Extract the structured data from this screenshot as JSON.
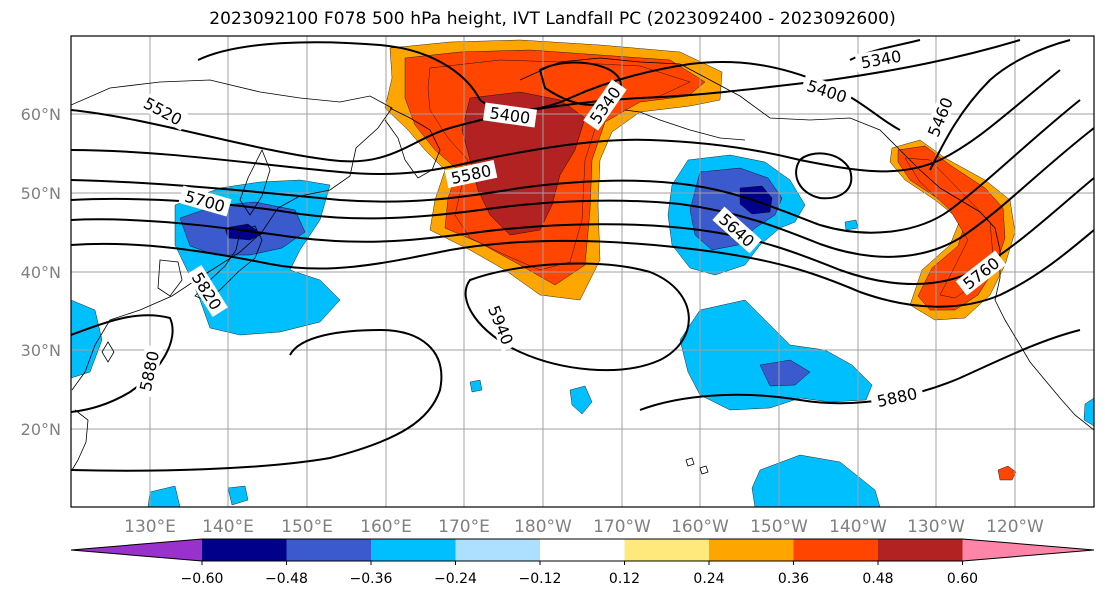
{
  "title": "2023092100 F078 500 hPa height, IVT Landfall PC (2023092400 - 2023092600)",
  "colors": {
    "neg_060_below": "#9932CC",
    "neg_060_048": "#00008B",
    "neg_048_036": "#3A5ACD",
    "neg_036_024": "#00BFFF",
    "neg_024_012": "#ADDFFF",
    "neutral": "#FFFFFF",
    "pos_012_024": "#FFE87C",
    "pos_024_036": "#FFA500",
    "pos_036_048": "#FF4500",
    "pos_048_060": "#B22222",
    "pos_060_above": "#FF85A8",
    "contour": "#000000",
    "grid": "#A0A0A0",
    "coast": "#000000"
  },
  "latitude_labels": [
    "60°N",
    "50°N",
    "40°N",
    "30°N",
    "20°N"
  ],
  "longitude_labels": [
    "130°E",
    "140°E",
    "150°E",
    "160°E",
    "170°E",
    "180°W",
    "170°W",
    "160°W",
    "150°W",
    "140°W",
    "130°W",
    "120°W"
  ],
  "colorbar": {
    "tick_labels": [
      "−0.60",
      "−0.48",
      "−0.36",
      "−0.24",
      "−0.12",
      "0.12",
      "0.24",
      "0.36",
      "0.48",
      "0.60"
    ]
  },
  "height_contour_labels": [
    "5520",
    "5400",
    "5340",
    "5580",
    "5700",
    "5820",
    "5880",
    "5940",
    "5640",
    "5400",
    "5340",
    "5460",
    "5760",
    "5880"
  ]
}
